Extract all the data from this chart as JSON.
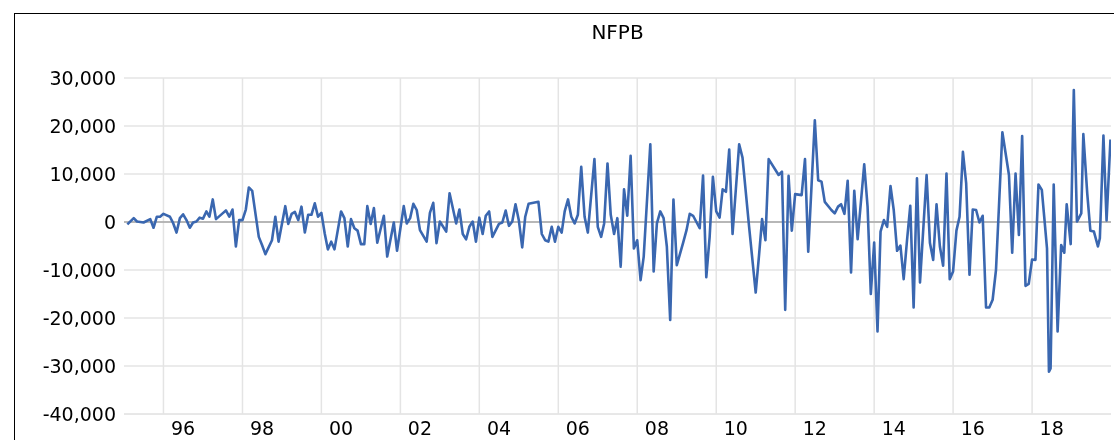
{
  "chart_data": {
    "type": "line",
    "title": "NFPB",
    "color": "#3a67b0",
    "grid": true,
    "xlim": [
      "1995-01",
      "2020-01"
    ],
    "ylim": [
      -40000,
      30000
    ],
    "xticks": [
      {
        "value": "1996",
        "label": null
      },
      {
        "value": "1996-07",
        "label": "96"
      },
      {
        "value": "1998",
        "label": null
      },
      {
        "value": "1998-07",
        "label": "98"
      },
      {
        "value": "2000",
        "label": null
      },
      {
        "value": "2000-07",
        "label": "00"
      },
      {
        "value": "2002",
        "label": null
      },
      {
        "value": "2002-07",
        "label": "02"
      },
      {
        "value": "2004",
        "label": null
      },
      {
        "value": "2004-07",
        "label": "04"
      },
      {
        "value": "2006",
        "label": null
      },
      {
        "value": "2006-07",
        "label": "06"
      },
      {
        "value": "2008",
        "label": null
      },
      {
        "value": "2008-07",
        "label": "08"
      },
      {
        "value": "2010",
        "label": null
      },
      {
        "value": "2010-07",
        "label": "10"
      },
      {
        "value": "2012",
        "label": null
      },
      {
        "value": "2012-07",
        "label": "12"
      },
      {
        "value": "2014",
        "label": null
      },
      {
        "value": "2014-07",
        "label": "14"
      },
      {
        "value": "2016",
        "label": null
      },
      {
        "value": "2016-07",
        "label": "16"
      },
      {
        "value": "2018",
        "label": null
      },
      {
        "value": "2018-07",
        "label": "18"
      }
    ],
    "yticks": [
      {
        "value": -40000,
        "label": "-40,000"
      },
      {
        "value": -30000,
        "label": "-30,000"
      },
      {
        "value": -20000,
        "label": "-20,000"
      },
      {
        "value": -10000,
        "label": "-10,000"
      },
      {
        "value": 0,
        "label": "0"
      },
      {
        "value": 10000,
        "label": "10,000"
      },
      {
        "value": 20000,
        "label": "20,000"
      },
      {
        "value": 30000,
        "label": "30,000"
      }
    ],
    "ref_lines": [
      {
        "axis": "y",
        "value": 0,
        "color": "#a6a6a6"
      }
    ],
    "x": [
      "1995-02",
      "1995-04",
      "1995-05",
      "1995-07",
      "1995-09",
      "1995-10",
      "1995-11",
      "1995-12",
      "1996-01",
      "1996-03",
      "1996-04",
      "1996-05",
      "1996-06",
      "1996-07",
      "1996-08",
      "1996-09",
      "1996-10",
      "1996-11",
      "1996-12",
      "1997-01",
      "1997-02",
      "1997-03",
      "1997-04",
      "1997-05",
      "1997-07",
      "1997-08",
      "1997-09",
      "1997-10",
      "1997-11",
      "1997-12",
      "1998-01",
      "1998-02",
      "1998-03",
      "1998-04",
      "1998-06",
      "1998-07",
      "1998-08",
      "1998-10",
      "1998-11",
      "1998-12",
      "1999-02",
      "1999-03",
      "1999-04",
      "1999-05",
      "1999-06",
      "1999-07",
      "1999-08",
      "1999-09",
      "1999-10",
      "1999-11",
      "1999-12",
      "2000-01",
      "2000-02",
      "2000-03",
      "2000-04",
      "2000-05",
      "2000-07",
      "2000-08",
      "2000-09",
      "2000-10",
      "2000-11",
      "2000-12",
      "2001-01",
      "2001-02",
      "2001-03",
      "2001-04",
      "2001-05",
      "2001-06",
      "2001-08",
      "2001-09",
      "2001-11",
      "2001-12",
      "2002-02",
      "2002-03",
      "2002-04",
      "2002-05",
      "2002-06",
      "2002-07",
      "2002-09",
      "2002-10",
      "2002-11",
      "2002-12",
      "2003-01",
      "2003-03",
      "2003-04",
      "2003-06",
      "2003-07",
      "2003-08",
      "2003-09",
      "2003-10",
      "2003-11",
      "2003-12",
      "2004-01",
      "2004-02",
      "2004-03",
      "2004-04",
      "2004-05",
      "2004-07",
      "2004-08",
      "2004-09",
      "2004-10",
      "2004-11",
      "2004-12",
      "2005-01",
      "2005-02",
      "2005-03",
      "2005-04",
      "2005-07",
      "2005-08",
      "2005-09",
      "2005-10",
      "2005-11",
      "2005-12",
      "2006-01",
      "2006-02",
      "2006-03",
      "2006-04",
      "2006-05",
      "2006-06",
      "2006-07",
      "2006-08",
      "2006-09",
      "2006-10",
      "2006-12",
      "2007-01",
      "2007-02",
      "2007-03",
      "2007-04",
      "2007-05",
      "2007-06",
      "2007-07",
      "2007-08",
      "2007-09",
      "2007-10",
      "2007-11",
      "2007-12",
      "2008-01",
      "2008-02",
      "2008-03",
      "2008-05",
      "2008-06",
      "2008-07",
      "2008-08",
      "2008-09",
      "2008-10",
      "2008-11",
      "2008-12",
      "2009-01",
      "2009-03",
      "2009-04",
      "2009-05",
      "2009-06",
      "2009-08",
      "2009-09",
      "2009-10",
      "2009-11",
      "2009-12",
      "2010-01",
      "2010-02",
      "2010-03",
      "2010-04",
      "2010-05",
      "2010-06",
      "2010-08",
      "2010-09",
      "2010-11",
      "2011-01",
      "2011-02",
      "2011-03",
      "2011-04",
      "2011-05",
      "2011-08",
      "2011-09",
      "2011-10",
      "2011-11",
      "2011-12",
      "2012-01",
      "2012-03",
      "2012-04",
      "2012-05",
      "2012-07",
      "2012-08",
      "2012-09",
      "2012-10",
      "2012-12",
      "2013-01",
      "2013-02",
      "2013-03",
      "2013-04",
      "2013-05",
      "2013-06",
      "2013-07",
      "2013-08",
      "2013-10",
      "2013-11",
      "2013-12",
      "2014-01",
      "2014-02",
      "2014-03",
      "2014-04",
      "2014-05",
      "2014-06",
      "2014-07",
      "2014-08",
      "2014-09",
      "2014-10",
      "2014-11",
      "2014-12",
      "2015-01",
      "2015-02",
      "2015-03",
      "2015-05",
      "2015-06",
      "2015-07",
      "2015-08",
      "2015-09",
      "2015-10",
      "2015-11",
      "2015-12",
      "2016-01",
      "2016-02",
      "2016-03",
      "2016-04",
      "2016-05",
      "2016-06",
      "2016-07",
      "2016-08",
      "2016-09",
      "2016-10",
      "2016-11",
      "2016-12",
      "2017-01",
      "2017-02",
      "2017-03",
      "2017-04",
      "2017-06",
      "2017-07",
      "2017-08",
      "2017-09",
      "2017-10",
      "2017-11",
      "2017-12",
      "2018-01",
      "2018-02",
      "2018-03",
      "2018-04",
      "2018-04-23",
      "2018-05-19",
      "2018-06-06",
      "2018-06-21",
      "2018-07-20",
      "2018-08-25",
      "2018-09-27",
      "2018-10-26",
      "2018-11-17",
      "2018-12-24",
      "2019-01-22",
      "2019-02-20",
      "2019-04-01",
      "2019-04-20",
      "2019-05-26",
      "2019-06-24",
      "2019-07-27",
      "2019-09-02",
      "2019-09-20",
      "2019-10-23",
      "2019-11-21",
      "2019-12-27"
    ],
    "values": [
      -500,
      800,
      100,
      -100,
      600,
      -1200,
      1100,
      1100,
      1700,
      1100,
      -300,
      -2200,
      800,
      1600,
      400,
      -1200,
      -100,
      100,
      900,
      700,
      2200,
      1100,
      4700,
      600,
      1800,
      2400,
      1100,
      2600,
      -5100,
      400,
      400,
      2600,
      7200,
      6500,
      -3100,
      -4800,
      -6700,
      -3800,
      1100,
      -4100,
      3300,
      -400,
      1700,
      2100,
      400,
      3200,
      -2200,
      1500,
      1500,
      3900,
      1100,
      1900,
      -2400,
      -5700,
      -4100,
      -5700,
      2200,
      800,
      -5100,
      600,
      -1300,
      -1800,
      -4600,
      -4600,
      3300,
      -400,
      2900,
      -4300,
      1300,
      -7200,
      -100,
      -6000,
      3300,
      -300,
      800,
      3800,
      2500,
      -1700,
      -4100,
      1900,
      4000,
      -4400,
      100,
      -2000,
      6000,
      -300,
      2600,
      -2500,
      -3600,
      -1000,
      100,
      -4100,
      900,
      -2500,
      1300,
      2200,
      -3100,
      -400,
      -100,
      2400,
      -800,
      100,
      3700,
      300,
      -5300,
      1100,
      3800,
      4200,
      -2500,
      -3800,
      -4100,
      -1000,
      -4100,
      -1000,
      -2200,
      2200,
      4700,
      1100,
      -300,
      1500,
      11500,
      1100,
      -2200,
      13100,
      -1000,
      -3100,
      -300,
      12200,
      1500,
      -2500,
      800,
      -9300,
      6800,
      1300,
      13800,
      -5500,
      -3800,
      -12100,
      -7200,
      16200,
      -10300,
      -300,
      2200,
      800,
      -5100,
      -20400,
      4700,
      -9000,
      -4300,
      -1700,
      1700,
      1300,
      -1300,
      9700,
      -11500,
      -3100,
      9400,
      2200,
      900,
      6800,
      6300,
      15100,
      -2500,
      16200,
      13400,
      -1000,
      -14700,
      -6900,
      600,
      -3800,
      13100,
      9800,
      10500,
      -18300,
      9600,
      -1800,
      5800,
      5600,
      13100,
      -6200,
      21200,
      8700,
      8400,
      4200,
      2500,
      1800,
      3200,
      3700,
      1700,
      8600,
      -10500,
      6500,
      -3600,
      12000,
      3200,
      -15000,
      -4300,
      -22800,
      -2000,
      400,
      -1000,
      7500,
      2500,
      -6000,
      -4900,
      -11900,
      -3800,
      3400,
      -17800,
      9100,
      -12600,
      9800,
      -4400,
      -7900,
      3700,
      -5100,
      -9100,
      10100,
      -11900,
      -10300,
      -1800,
      1100,
      14600,
      8100,
      -11000,
      2600,
      2500,
      -100,
      1300,
      -17800,
      -17800,
      -16200,
      -10000,
      3500,
      18700,
      9800,
      -6400,
      10100,
      -2700,
      17900,
      -13300,
      -12900,
      -7800,
      -7900,
      7800,
      6700,
      1100,
      -5500,
      -31200,
      -30500,
      7800,
      -22800,
      -4800,
      -6400,
      3700,
      -4600,
      27500,
      100,
      1800,
      18300,
      6000,
      -1800,
      -2000,
      -5100,
      -3400,
      18000,
      300,
      17200
    ]
  }
}
